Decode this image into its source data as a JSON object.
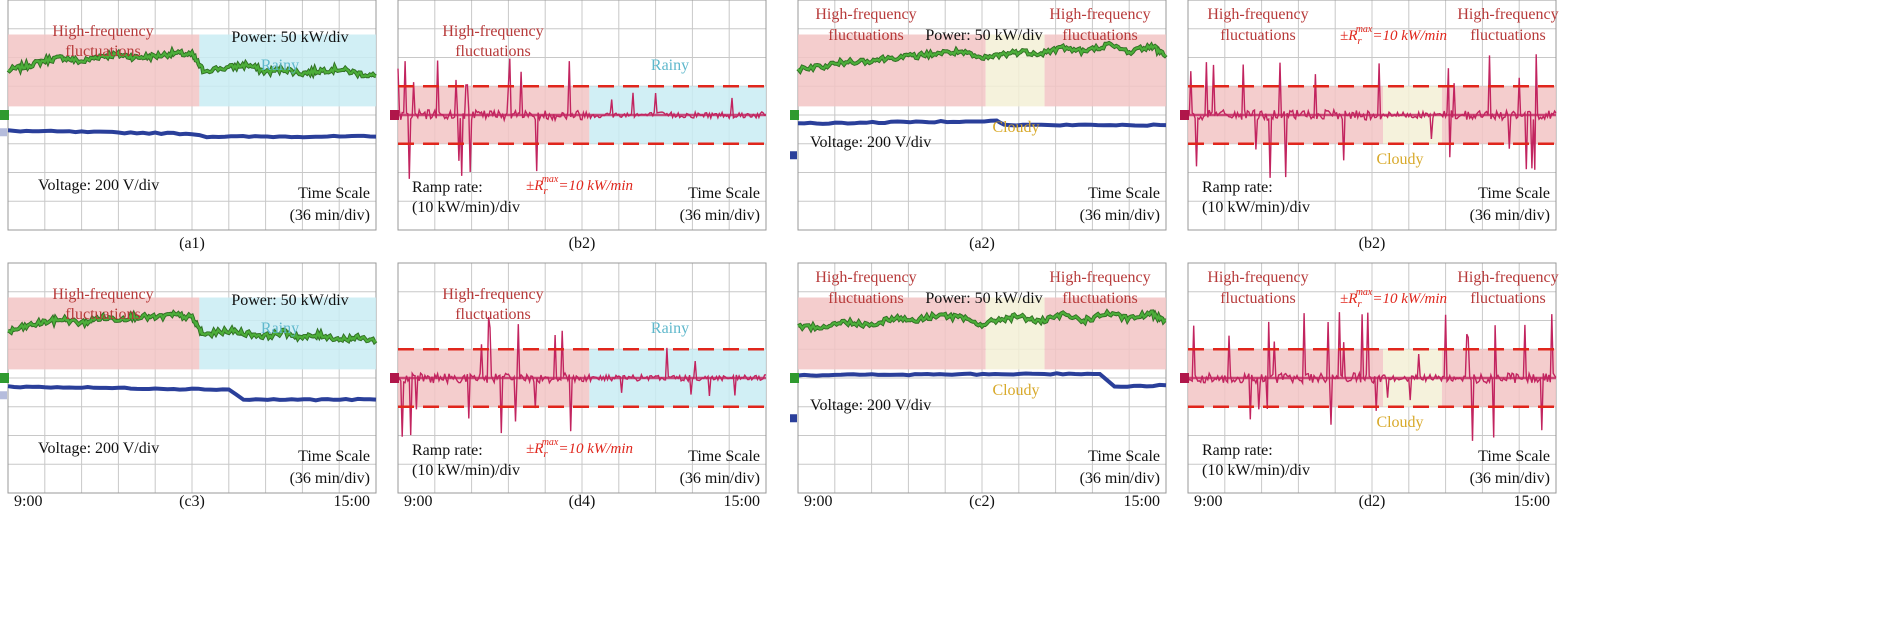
{
  "figure_title": "Oscilloscope captures of PV power, ramp rate and voltage under rainy and cloudy conditions",
  "colors": {
    "grid": "#c8c8c8",
    "power_trace": "#4cae3a",
    "power_trace_edge": "#2f6e22",
    "voltage_trace": "#2a3f9a",
    "ramp_trace": "#c2245f",
    "limit_line": "#e0261c",
    "high_freq_zone": "#f2c4c4",
    "rainy_zone": "#c9ecf3",
    "cloudy_zone": "#f3f0d6",
    "hf_text": "#b73a3a",
    "rainy_text": "#5fb8cc",
    "cloudy_text": "#d8a92a",
    "limit_text": "#e0261c",
    "marker_green": "#2f9a2f",
    "marker_red": "#b0164a",
    "marker_blue": "#2a3f9a"
  },
  "texts": {
    "hf": "High-frequency",
    "fluct": "fluctuations",
    "power_scale": "Power: 50 kW/div",
    "voltage_scale": "Voltage: 200 V/div",
    "time_scale_1": "Time Scale",
    "time_scale_2": "(36 min/div)",
    "ramp_scale_1": "Ramp rate:",
    "ramp_scale_2": "(10 kW/min)/div",
    "rainy": "Rainy",
    "cloudy": "Cloudy",
    "limit_prefix": "±R",
    "limit_sub": "r",
    "limit_sup": "max",
    "limit_suffix": "=10 kW/min"
  },
  "chart_data": [
    {
      "type": "line",
      "panel": "a1",
      "label": "(a1)",
      "weather": "Rainy",
      "signals": [
        "PV power",
        "Voltage"
      ],
      "scales": {
        "power": "50 kW/div",
        "voltage": "200 V/div",
        "time": "36 min/div"
      },
      "zones": [
        {
          "label": "High-frequency fluctuations",
          "x_div": [
            0,
            5.2
          ]
        },
        {
          "label": "Rainy",
          "x_div": [
            5.2,
            10
          ]
        }
      ],
      "power_div": [
        [
          0,
          1.55
        ],
        [
          0.5,
          1.7
        ],
        [
          1,
          1.9
        ],
        [
          1.5,
          2.0
        ],
        [
          2,
          1.85
        ],
        [
          2.5,
          2.05
        ],
        [
          3,
          2.1
        ],
        [
          3.5,
          2.0
        ],
        [
          4,
          2.05
        ],
        [
          4.5,
          2.15
        ],
        [
          5.0,
          2.1
        ],
        [
          5.3,
          1.55
        ],
        [
          6,
          1.65
        ],
        [
          6.5,
          1.75
        ],
        [
          7,
          1.5
        ],
        [
          7.5,
          1.6
        ],
        [
          8,
          1.45
        ],
        [
          8.5,
          1.55
        ],
        [
          9,
          1.6
        ],
        [
          9.5,
          1.45
        ],
        [
          10,
          1.35
        ]
      ],
      "voltage_div": [
        [
          0,
          -0.55
        ],
        [
          5.0,
          -0.65
        ],
        [
          5.4,
          -0.75
        ],
        [
          10,
          -0.75
        ]
      ]
    },
    {
      "type": "line",
      "panel": "b2",
      "label": "(b2)",
      "weather": "Rainy",
      "signals": [
        "Ramp rate"
      ],
      "scales": {
        "ramp": "(10 kW/min)/div",
        "time": "36 min/div"
      },
      "limit_kw_per_min": 10,
      "zones": [
        {
          "label": "High-frequency fluctuations",
          "x_div": [
            0,
            5.2
          ]
        },
        {
          "label": "Rainy",
          "x_div": [
            5.2,
            10
          ]
        }
      ]
    },
    {
      "type": "line",
      "panel": "c3",
      "label": "(c3)",
      "weather": "Rainy",
      "signals": [
        "PV power",
        "Voltage"
      ],
      "scales": {
        "power": "50 kW/div",
        "voltage": "200 V/div",
        "time": "36 min/div"
      },
      "x_tick_labels": [
        "9:00",
        "15:00"
      ],
      "zones": [
        {
          "label": "High-frequency fluctuations",
          "x_div": [
            0,
            5.2
          ]
        },
        {
          "label": "Rainy",
          "x_div": [
            5.2,
            10
          ]
        }
      ],
      "power_div": [
        [
          0,
          1.6
        ],
        [
          0.5,
          1.8
        ],
        [
          1,
          1.95
        ],
        [
          1.5,
          2.05
        ],
        [
          2,
          1.9
        ],
        [
          2.5,
          2.1
        ],
        [
          3,
          2.05
        ],
        [
          3.5,
          2.15
        ],
        [
          4,
          2.1
        ],
        [
          4.5,
          2.2
        ],
        [
          5.0,
          2.1
        ],
        [
          5.3,
          1.5
        ],
        [
          6,
          1.65
        ],
        [
          6.5,
          1.55
        ],
        [
          7,
          1.45
        ],
        [
          7.5,
          1.6
        ],
        [
          8,
          1.4
        ],
        [
          8.5,
          1.5
        ],
        [
          9,
          1.35
        ],
        [
          9.5,
          1.4
        ],
        [
          10,
          1.3
        ]
      ],
      "voltage_div": [
        [
          0,
          -0.3
        ],
        [
          6.0,
          -0.4
        ],
        [
          6.4,
          -0.75
        ],
        [
          10,
          -0.75
        ]
      ]
    },
    {
      "type": "line",
      "panel": "d4",
      "label": "(d4)",
      "weather": "Rainy",
      "signals": [
        "Ramp rate"
      ],
      "scales": {
        "ramp": "(10 kW/min)/div",
        "time": "36 min/div"
      },
      "x_tick_labels": [
        "9:00",
        "15:00"
      ],
      "limit_kw_per_min": 10,
      "zones": [
        {
          "label": "High-frequency fluctuations",
          "x_div": [
            0,
            5.2
          ]
        },
        {
          "label": "Rainy",
          "x_div": [
            5.2,
            10
          ]
        }
      ]
    },
    {
      "type": "line",
      "panel": "a2",
      "label": "(a2)",
      "weather": "Cloudy",
      "signals": [
        "PV power",
        "Voltage"
      ],
      "scales": {
        "power": "50 kW/div",
        "voltage": "200 V/div",
        "time": "36 min/div"
      },
      "zones": [
        {
          "label": "High-frequency fluctuations",
          "x_div": [
            0,
            5.1
          ]
        },
        {
          "label": "Cloudy",
          "x_div": [
            5.1,
            6.7
          ]
        },
        {
          "label": "High-frequency fluctuations",
          "x_div": [
            6.7,
            10
          ]
        }
      ],
      "power_div": [
        [
          0,
          1.6
        ],
        [
          0.7,
          1.7
        ],
        [
          1.3,
          1.85
        ],
        [
          2,
          1.9
        ],
        [
          2.6,
          2.0
        ],
        [
          3.2,
          2.05
        ],
        [
          3.8,
          2.15
        ],
        [
          4.4,
          2.2
        ],
        [
          5.0,
          1.95
        ],
        [
          5.5,
          2.1
        ],
        [
          6,
          2.2
        ],
        [
          6.6,
          2.15
        ],
        [
          7.2,
          2.35
        ],
        [
          7.8,
          2.2
        ],
        [
          8.4,
          2.45
        ],
        [
          9,
          2.2
        ],
        [
          9.6,
          2.4
        ],
        [
          10,
          2.1
        ]
      ],
      "voltage_div": [
        [
          0,
          -0.3
        ],
        [
          5.4,
          -0.2
        ],
        [
          5.6,
          -0.35
        ],
        [
          10,
          -0.35
        ]
      ]
    },
    {
      "type": "line",
      "panel": "b2",
      "label": "(b2)",
      "weather": "Cloudy",
      "signals": [
        "Ramp rate"
      ],
      "scales": {
        "ramp": "(10 kW/min)/div",
        "time": "36 min/div"
      },
      "limit_kw_per_min": 10,
      "zones": [
        {
          "label": "High-frequency fluctuations",
          "x_div": [
            0,
            5.3
          ]
        },
        {
          "label": "Cloudy",
          "x_div": [
            5.3,
            6.9
          ]
        },
        {
          "label": "High-frequency fluctuations",
          "x_div": [
            6.9,
            10
          ]
        }
      ]
    },
    {
      "type": "line",
      "panel": "c2",
      "label": "(c2)",
      "weather": "Cloudy",
      "signals": [
        "PV power",
        "Voltage"
      ],
      "scales": {
        "power": "50 kW/div",
        "voltage": "200 V/div",
        "time": "36 min/div"
      },
      "x_tick_labels": [
        "9:00",
        "15:00"
      ],
      "zones": [
        {
          "label": "High-frequency fluctuations",
          "x_div": [
            0,
            5.1
          ]
        },
        {
          "label": "Cloudy",
          "x_div": [
            5.1,
            6.7
          ]
        },
        {
          "label": "High-frequency fluctuations",
          "x_div": [
            6.7,
            10
          ]
        }
      ],
      "power_div": [
        [
          0,
          1.75
        ],
        [
          0.7,
          1.8
        ],
        [
          1.3,
          1.95
        ],
        [
          2,
          1.85
        ],
        [
          2.6,
          2.1
        ],
        [
          3.2,
          2.0
        ],
        [
          3.8,
          2.2
        ],
        [
          4.4,
          2.1
        ],
        [
          5.0,
          1.85
        ],
        [
          5.5,
          2.05
        ],
        [
          6,
          2.15
        ],
        [
          6.6,
          1.95
        ],
        [
          7.2,
          2.2
        ],
        [
          7.8,
          2.0
        ],
        [
          8.4,
          2.25
        ],
        [
          9,
          2.05
        ],
        [
          9.6,
          2.25
        ],
        [
          10,
          2.0
        ]
      ],
      "voltage_div": [
        [
          0,
          0.1
        ],
        [
          8.2,
          0.15
        ],
        [
          8.6,
          -0.3
        ],
        [
          10,
          -0.25
        ]
      ]
    },
    {
      "type": "line",
      "panel": "d2",
      "label": "(d2)",
      "weather": "Cloudy",
      "signals": [
        "Ramp rate"
      ],
      "scales": {
        "ramp": "(10 kW/min)/div",
        "time": "36 min/div"
      },
      "x_tick_labels": [
        "9:00",
        "15:00"
      ],
      "limit_kw_per_min": 10,
      "zones": [
        {
          "label": "High-frequency fluctuations",
          "x_div": [
            0,
            5.3
          ]
        },
        {
          "label": "Cloudy",
          "x_div": [
            5.3,
            6.9
          ]
        },
        {
          "label": "High-frequency fluctuations",
          "x_div": [
            6.9,
            10
          ]
        }
      ]
    }
  ]
}
